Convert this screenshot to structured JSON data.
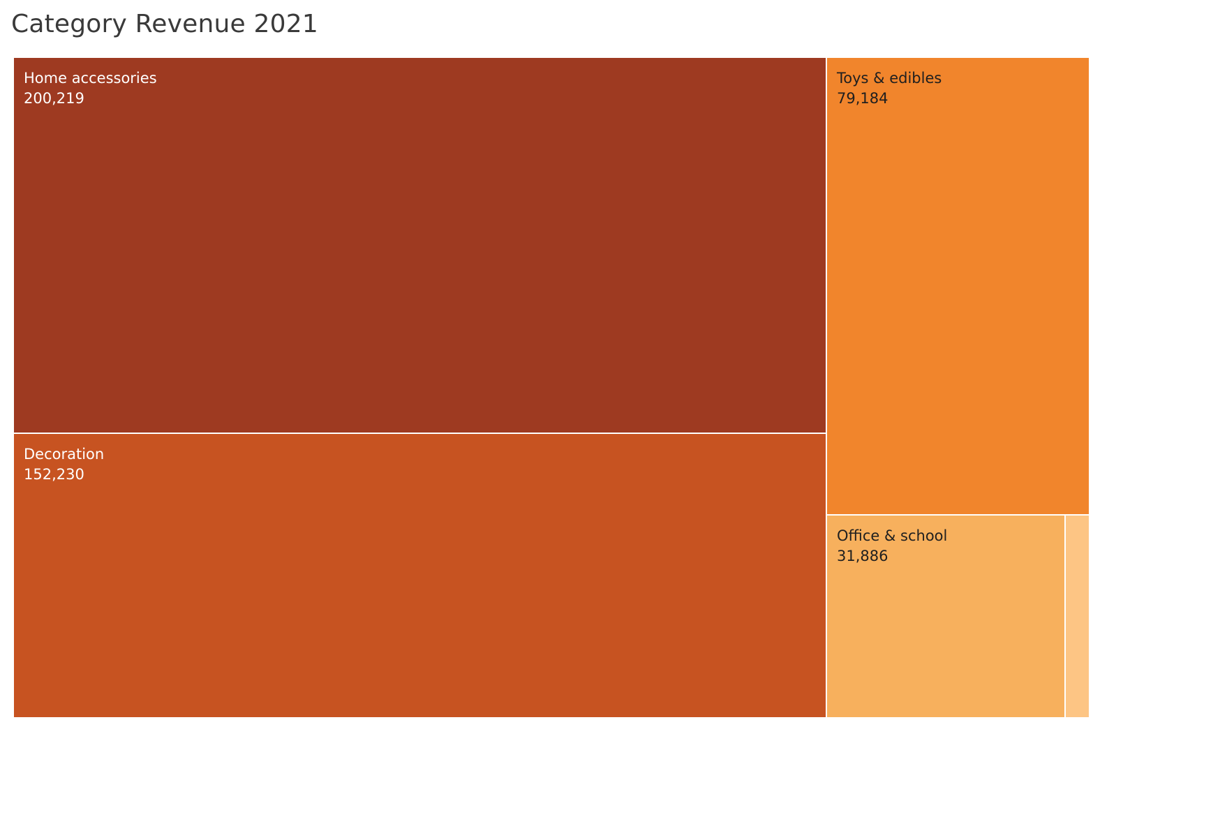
{
  "chart_data": {
    "type": "treemap",
    "title": "Category Revenue 2021",
    "categories": [
      "Home accessories",
      "Decoration",
      "Toys & edibles",
      "Office & school",
      ""
    ],
    "values": [
      200219,
      152230,
      79184,
      31886,
      3300
    ],
    "value_labels": [
      "200,219",
      "152,230",
      "79,184",
      "31,886",
      ""
    ],
    "colors": [
      "#9e3a21",
      "#c75321",
      "#f1852c",
      "#f7b05d",
      "#fdc584"
    ],
    "label_colors": [
      "#ffffff",
      "#ffffff",
      "#1f1f1f",
      "#1f1f1f",
      "#1f1f1f"
    ]
  }
}
